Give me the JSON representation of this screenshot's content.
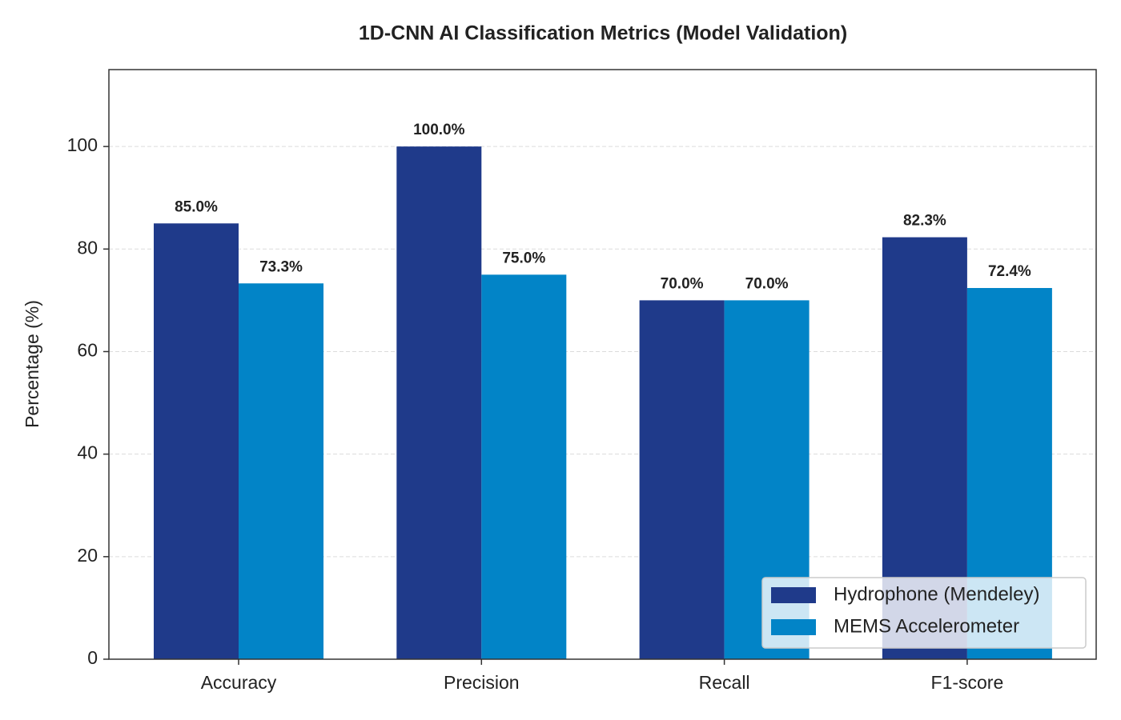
{
  "chart_data": {
    "type": "bar",
    "title": "1D-CNN AI Classification Metrics (Model Validation)",
    "ylabel": "Percentage (%)",
    "categories": [
      "Accuracy",
      "Precision",
      "Recall",
      "F1-score"
    ],
    "series": [
      {
        "name": "Hydrophone (Mendeley)",
        "color": "#1f3a8a",
        "values": [
          85.0,
          100.0,
          70.0,
          82.3
        ],
        "value_labels": [
          "85.0%",
          "100.0%",
          "70.0%",
          "82.3%"
        ]
      },
      {
        "name": "MEMS Accelerometer",
        "color": "#0284c7",
        "values": [
          73.3,
          75.0,
          70.0,
          72.4
        ],
        "value_labels": [
          "73.3%",
          "75.0%",
          "70.0%",
          "72.4%"
        ]
      }
    ],
    "ylim": [
      0,
      115
    ],
    "yticks": [
      0,
      20,
      40,
      60,
      80,
      100
    ],
    "grid": true,
    "legend": "lower right"
  }
}
